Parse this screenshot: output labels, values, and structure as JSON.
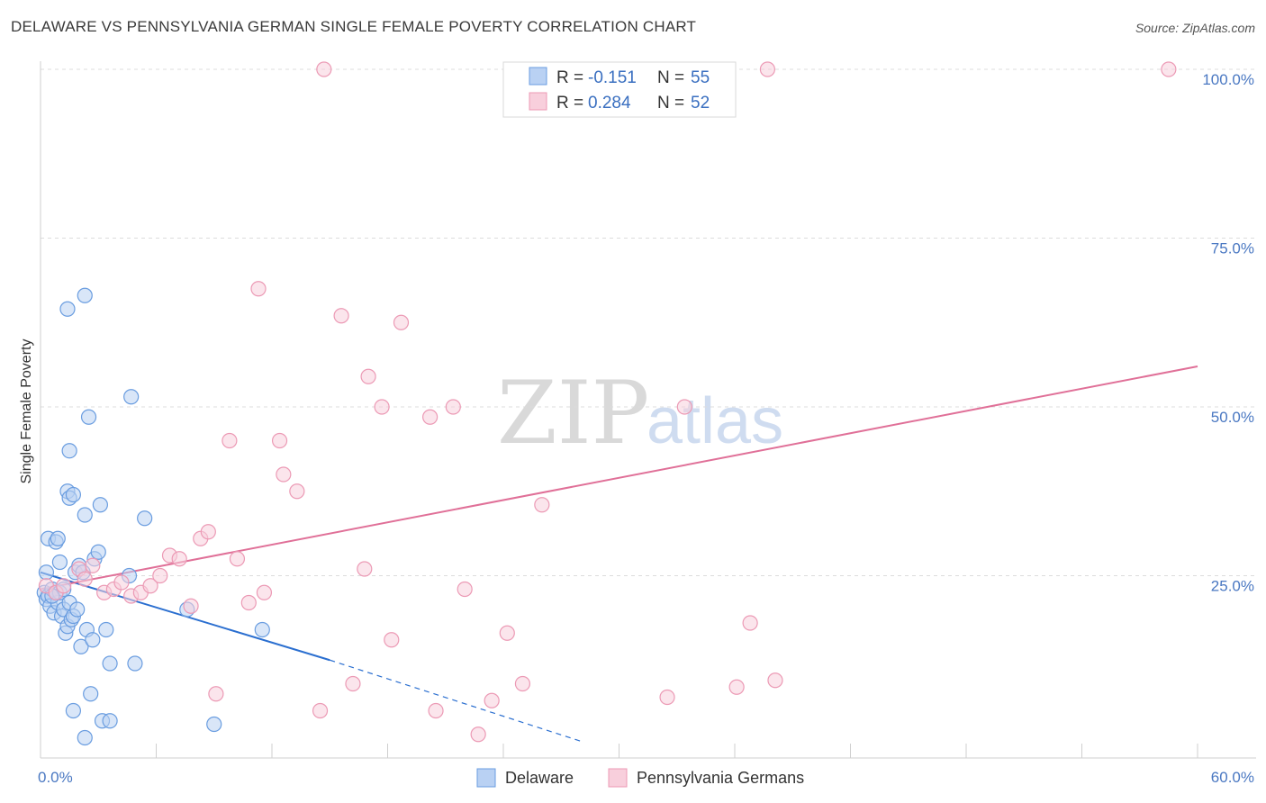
{
  "title": "DELAWARE VS PENNSYLVANIA GERMAN SINGLE FEMALE POVERTY CORRELATION CHART",
  "source": "Source: ZipAtlas.com",
  "watermark": {
    "zip": "ZIP",
    "atlas": "atlas"
  },
  "chart_data": {
    "type": "scatter",
    "xlabel": "",
    "ylabel": "Single Female Poverty",
    "xlim": [
      0,
      60
    ],
    "ylim": [
      -2,
      102
    ],
    "x_tick_labels": [
      {
        "v": 0,
        "label": "0.0%"
      },
      {
        "v": 60,
        "label": "60.0%"
      }
    ],
    "x_minor_ticks": [
      0,
      6,
      12,
      18,
      24,
      30,
      36,
      42,
      48,
      54,
      60
    ],
    "y_ticks": [
      {
        "v": 25,
        "label": "25.0%"
      },
      {
        "v": 50,
        "label": "50.0%"
      },
      {
        "v": 75,
        "label": "75.0%"
      },
      {
        "v": 100,
        "label": "100.0%"
      }
    ],
    "grid": "horizontal dashed",
    "legend_position": "top-center",
    "series": [
      {
        "name": "Delaware",
        "color": "#6a9de0",
        "fill": "#b9d1f3",
        "line_color": "#2b6fd0",
        "R": "-0.151",
        "N": "55",
        "trend": {
          "x0": 0,
          "y0": 25.5,
          "x1": 15,
          "y1": 12.5,
          "dash_to_x": 28,
          "dash_to_y": 0.5
        },
        "points": [
          [
            0.2,
            22.5
          ],
          [
            0.3,
            21.5
          ],
          [
            0.4,
            22.0
          ],
          [
            0.5,
            20.5
          ],
          [
            0.6,
            23.0
          ],
          [
            0.7,
            19.5
          ],
          [
            0.8,
            22.5
          ],
          [
            0.9,
            21.0
          ],
          [
            1.0,
            22.5
          ],
          [
            1.1,
            19.0
          ],
          [
            1.2,
            20.0
          ],
          [
            1.3,
            16.5
          ],
          [
            1.4,
            17.5
          ],
          [
            1.5,
            21.0
          ],
          [
            1.6,
            18.5
          ],
          [
            1.7,
            19.0
          ],
          [
            0.4,
            30.5
          ],
          [
            0.8,
            30.0
          ],
          [
            0.9,
            30.5
          ],
          [
            1.0,
            27.0
          ],
          [
            1.2,
            23.0
          ],
          [
            1.4,
            37.5
          ],
          [
            1.5,
            36.5
          ],
          [
            1.7,
            37.0
          ],
          [
            1.8,
            25.5
          ],
          [
            1.9,
            20.0
          ],
          [
            2.0,
            26.5
          ],
          [
            2.1,
            14.5
          ],
          [
            2.2,
            25.5
          ],
          [
            2.3,
            34.0
          ],
          [
            2.4,
            17.0
          ],
          [
            2.5,
            48.5
          ],
          [
            1.5,
            43.5
          ],
          [
            1.4,
            64.5
          ],
          [
            2.3,
            66.5
          ],
          [
            2.6,
            7.5
          ],
          [
            2.7,
            15.5
          ],
          [
            2.8,
            27.5
          ],
          [
            3.0,
            28.5
          ],
          [
            3.1,
            35.5
          ],
          [
            3.2,
            3.5
          ],
          [
            3.4,
            17.0
          ],
          [
            3.6,
            3.5
          ],
          [
            3.6,
            12.0
          ],
          [
            4.6,
            25.0
          ],
          [
            4.7,
            51.5
          ],
          [
            4.9,
            12.0
          ],
          [
            5.4,
            33.5
          ],
          [
            7.6,
            20.0
          ],
          [
            9.0,
            3.0
          ],
          [
            11.5,
            17.0
          ],
          [
            1.7,
            5.0
          ],
          [
            2.3,
            1.0
          ],
          [
            0.3,
            25.5
          ],
          [
            0.6,
            22.0
          ]
        ]
      },
      {
        "name": "Pennsylvania Germans",
        "color": "#ec9ab5",
        "fill": "#f8cfdc",
        "line_color": "#e07098",
        "R": "0.284",
        "N": "52",
        "trend": {
          "x0": 0,
          "y0": 23.0,
          "x1": 60,
          "y1": 56.0
        },
        "points": [
          [
            0.3,
            23.5
          ],
          [
            0.8,
            22.5
          ],
          [
            1.2,
            23.5
          ],
          [
            2.0,
            26.0
          ],
          [
            2.3,
            24.5
          ],
          [
            2.7,
            26.5
          ],
          [
            3.3,
            22.5
          ],
          [
            3.8,
            23.0
          ],
          [
            4.2,
            24.0
          ],
          [
            4.7,
            22.0
          ],
          [
            5.2,
            22.5
          ],
          [
            5.7,
            23.5
          ],
          [
            6.2,
            25.0
          ],
          [
            6.7,
            28.0
          ],
          [
            7.2,
            27.5
          ],
          [
            7.8,
            20.5
          ],
          [
            8.3,
            30.5
          ],
          [
            8.7,
            31.5
          ],
          [
            9.1,
            7.5
          ],
          [
            9.8,
            45.0
          ],
          [
            10.2,
            27.5
          ],
          [
            10.8,
            21.0
          ],
          [
            11.3,
            67.5
          ],
          [
            11.6,
            22.5
          ],
          [
            12.4,
            45.0
          ],
          [
            12.6,
            40.0
          ],
          [
            13.3,
            37.5
          ],
          [
            14.5,
            5.0
          ],
          [
            14.7,
            100.0
          ],
          [
            15.6,
            63.5
          ],
          [
            16.2,
            9.0
          ],
          [
            16.8,
            26.0
          ],
          [
            17.0,
            54.5
          ],
          [
            17.7,
            50.0
          ],
          [
            18.2,
            15.5
          ],
          [
            18.7,
            62.5
          ],
          [
            20.2,
            48.5
          ],
          [
            20.5,
            5.0
          ],
          [
            21.4,
            50.0
          ],
          [
            22.0,
            23.0
          ],
          [
            22.7,
            1.5
          ],
          [
            23.4,
            6.5
          ],
          [
            24.2,
            16.5
          ],
          [
            25.0,
            9.0
          ],
          [
            26.0,
            35.5
          ],
          [
            32.5,
            7.0
          ],
          [
            33.4,
            50.0
          ],
          [
            36.1,
            8.5
          ],
          [
            36.8,
            18.0
          ],
          [
            38.1,
            9.5
          ],
          [
            37.7,
            100.0
          ],
          [
            58.5,
            100.0
          ]
        ]
      }
    ]
  }
}
